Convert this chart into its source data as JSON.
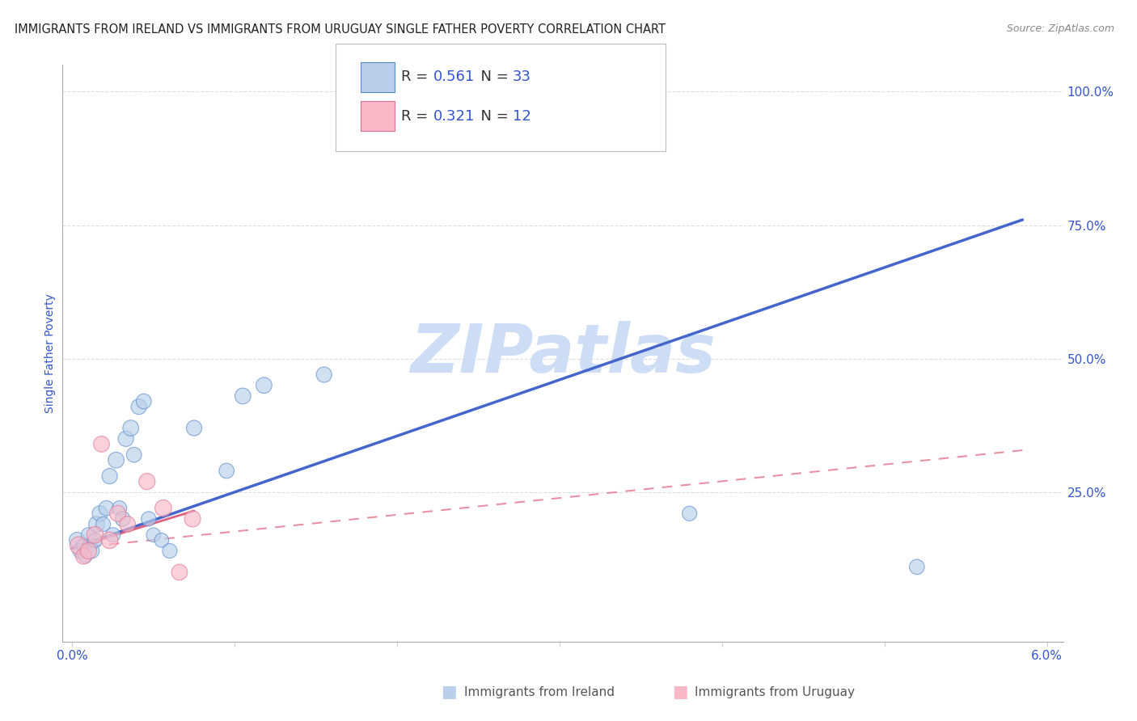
{
  "title": "IMMIGRANTS FROM IRELAND VS IMMIGRANTS FROM URUGUAY SINGLE FATHER POVERTY CORRELATION CHART",
  "source": "Source: ZipAtlas.com",
  "ylabel": "Single Father Poverty",
  "x_min": 0.0,
  "x_max": 6.0,
  "y_min": 0.0,
  "y_max": 100.0,
  "ireland_color": "#b8d0ea",
  "ireland_edge_color": "#5588cc",
  "ireland_line_color": "#4466cc",
  "uruguay_color": "#f8b8c8",
  "uruguay_edge_color": "#e07090",
  "uruguay_line_color": "#e06080",
  "ireland_R": "0.561",
  "ireland_N": "33",
  "uruguay_R": "0.321",
  "uruguay_N": "12",
  "rv_color": "#3355cc",
  "watermark": "ZIPatlas",
  "watermark_color": "#ccddf5",
  "legend_label_ireland": "Immigrants from Ireland",
  "legend_label_uruguay": "Immigrants from Uruguay",
  "ireland_x": [
    0.03,
    0.05,
    0.07,
    0.08,
    0.1,
    0.11,
    0.12,
    0.14,
    0.15,
    0.17,
    0.19,
    0.21,
    0.23,
    0.25,
    0.27,
    0.29,
    0.31,
    0.33,
    0.36,
    0.38,
    0.41,
    0.44,
    0.47,
    0.5,
    0.55,
    0.6,
    0.75,
    0.95,
    1.05,
    1.18,
    1.55,
    3.8,
    5.2
  ],
  "ireland_y": [
    16,
    14,
    15,
    13,
    17,
    15,
    14,
    16,
    19,
    21,
    19,
    22,
    28,
    17,
    31,
    22,
    20,
    35,
    37,
    32,
    41,
    42,
    20,
    17,
    16,
    14,
    37,
    29,
    43,
    45,
    47,
    21,
    11
  ],
  "ireland_s": [
    200,
    180,
    160,
    150,
    170,
    160,
    180,
    170,
    200,
    190,
    170,
    180,
    190,
    170,
    200,
    170,
    180,
    190,
    200,
    180,
    190,
    180,
    170,
    160,
    160,
    170,
    190,
    180,
    200,
    200,
    190,
    170,
    180
  ],
  "uruguay_x": [
    0.04,
    0.07,
    0.1,
    0.14,
    0.18,
    0.23,
    0.28,
    0.34,
    0.46,
    0.56,
    0.66,
    0.74
  ],
  "uruguay_y": [
    15,
    13,
    14,
    17,
    34,
    16,
    21,
    19,
    27,
    22,
    10,
    20
  ],
  "uruguay_s": [
    250,
    200,
    210,
    220,
    200,
    220,
    210,
    200,
    210,
    220,
    200,
    210
  ],
  "ireland_line_x0": 0.0,
  "ireland_line_x1": 5.85,
  "ireland_line_y0": 14.5,
  "ireland_line_y1": 76.0,
  "uruguay_solid_x0": 0.0,
  "uruguay_solid_x1": 0.75,
  "uruguay_solid_y0": 14.5,
  "uruguay_solid_y1": 21.5,
  "uruguay_dash_x0": 0.0,
  "uruguay_dash_x1": 5.9,
  "uruguay_dash_y0": 14.5,
  "uruguay_dash_y1": 33.0,
  "bg_color": "#ffffff",
  "grid_color": "#dddddd",
  "axis_color": "#3355cc",
  "title_color": "#222222",
  "y_tick_vals": [
    25,
    50,
    75,
    100
  ],
  "y_tick_labels": [
    "25.0%",
    "50.0%",
    "75.0%",
    "100.0%"
  ]
}
